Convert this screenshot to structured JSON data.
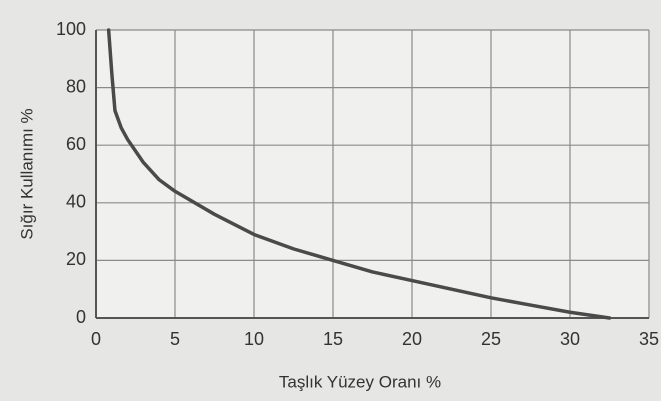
{
  "chart_data": {
    "type": "line",
    "xlabel": "Taşlık Yüzey Oranı %",
    "ylabel": "Sığır Kullanımı %",
    "x": [
      0.8,
      1.0,
      1.2,
      1.6,
      2,
      3,
      4,
      5,
      7.5,
      10,
      12.5,
      15,
      17.5,
      20,
      22.5,
      25,
      27.5,
      30,
      32.5
    ],
    "series": [
      {
        "name": "Sığır Kullanımı",
        "color": "#4a4a4a",
        "values": [
          100,
          85,
          72,
          66,
          62,
          54,
          48,
          44,
          36,
          29,
          24,
          20,
          16,
          13,
          10,
          7,
          4.5,
          2,
          0
        ]
      }
    ],
    "xlim": [
      0,
      35
    ],
    "xticks": [
      0,
      5,
      10,
      15,
      20,
      25,
      30,
      35
    ],
    "ylim": [
      0,
      100
    ],
    "yticks": [
      0,
      20,
      40,
      60,
      80,
      100
    ],
    "grid": true
  }
}
